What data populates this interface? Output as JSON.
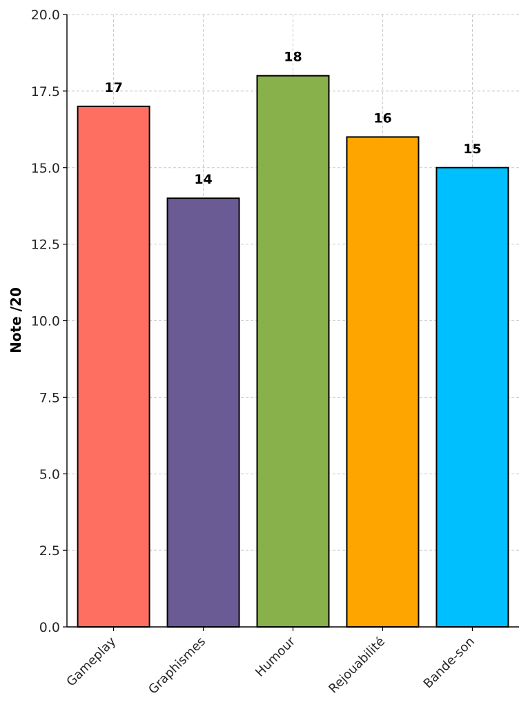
{
  "chart_data": {
    "type": "bar",
    "title": "",
    "xlabel": "",
    "ylabel": "Note /20",
    "ylim": [
      0,
      20
    ],
    "yticks": [
      0,
      2.5,
      5,
      7.5,
      10,
      12.5,
      15,
      17.5,
      20
    ],
    "ytick_labels": [
      "0.0",
      "2.5",
      "5.0",
      "7.5",
      "10.0",
      "12.5",
      "15.0",
      "17.5",
      "20.0"
    ],
    "grid": true,
    "categories": [
      "Gameplay",
      "Graphismes",
      "Humour",
      "Rejouabilité",
      "Bande-son"
    ],
    "values": [
      17,
      14,
      18,
      16,
      15
    ],
    "value_labels": [
      "17",
      "14",
      "18",
      "16",
      "15"
    ],
    "colors": [
      "#ff6f61",
      "#6b5b95",
      "#88b04b",
      "#ffa500",
      "#00bfff"
    ]
  }
}
